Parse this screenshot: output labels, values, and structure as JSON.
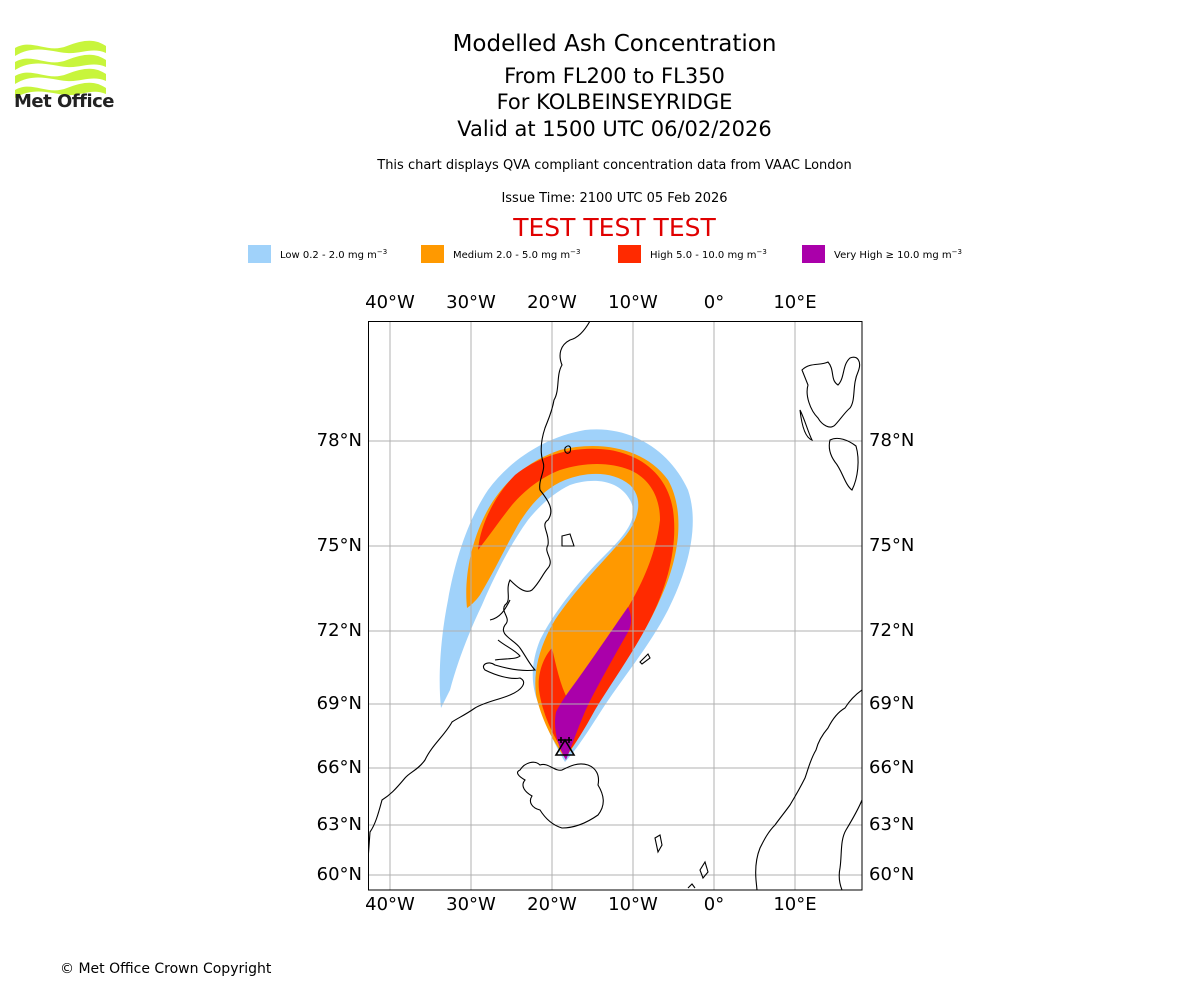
{
  "logo": {
    "text": "Met Office",
    "color": "#c8f53c"
  },
  "header": {
    "title": "Modelled Ash Concentration",
    "levels": "From FL200 to FL350",
    "volcano": "For KOLBEINSEYRIDGE",
    "valid": "Valid at 1500 UTC 06/02/2026",
    "description": "This chart displays QVA compliant concentration data from VAAC London",
    "issue_time": "Issue Time: 2100 UTC 05 Feb 2026",
    "test_banner": "TEST TEST TEST"
  },
  "legend": [
    {
      "label": "Low 0.2 - 2.0 mg m",
      "unit_exp": "−3",
      "color": "#a0d2fa"
    },
    {
      "label": "Medium 2.0 - 5.0 mg m",
      "unit_exp": "−3",
      "color": "#ff9900"
    },
    {
      "label": "High 5.0 - 10.0 mg m",
      "unit_exp": "−3",
      "color": "#ff2a00"
    },
    {
      "label": "Very High  ≥  10.0 mg m",
      "unit_exp": "−3",
      "color": "#aa00aa"
    }
  ],
  "chart_data": {
    "type": "map",
    "title": "Modelled Ash Concentration",
    "lon_ticks": [
      "40°W",
      "30°W",
      "20°W",
      "10°W",
      "0°",
      "10°E"
    ],
    "lat_ticks": [
      "78°N",
      "75°N",
      "72°N",
      "69°N",
      "66°N",
      "63°N",
      "60°N"
    ],
    "lon_values": [
      -40,
      -30,
      -20,
      -10,
      0,
      10
    ],
    "lat_values": [
      78,
      75,
      72,
      69,
      66,
      63,
      60
    ],
    "grid": true,
    "volcano_marker": {
      "name": "KOLBEINSEYRIDGE",
      "lat": 67.1,
      "lon": -18.6
    },
    "ash_levels": [
      "Low",
      "Medium",
      "High",
      "Very High"
    ],
    "gridline_color": "#b0b0b0"
  },
  "footer": {
    "copyright": "© Met Office Crown Copyright"
  }
}
